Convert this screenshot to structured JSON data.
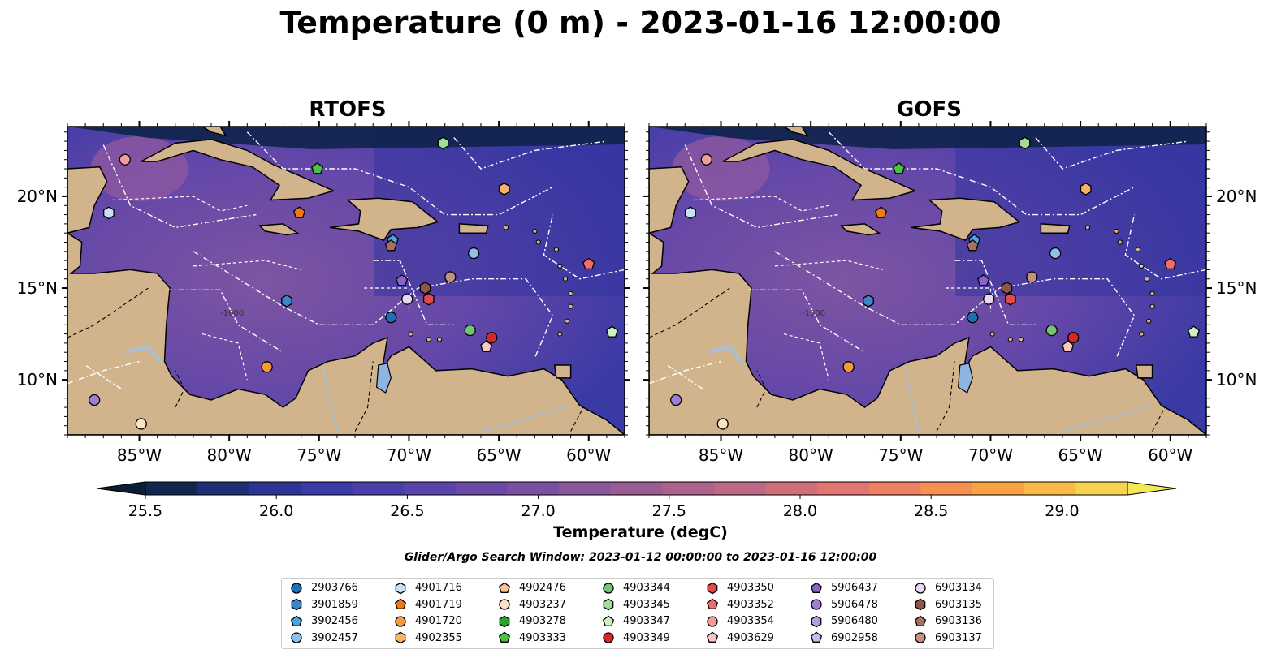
{
  "title": "Temperature (0 m) - 2023-01-16 12:00:00",
  "panels": [
    {
      "title": "RTOFS"
    },
    {
      "title": "GOFS"
    }
  ],
  "lon_ticks": [
    "85°W",
    "80°W",
    "75°W",
    "70°W",
    "65°W",
    "60°W"
  ],
  "lat_ticks": [
    "20°N",
    "15°N",
    "10°N"
  ],
  "isobath_label": "-1000",
  "colorbar": {
    "label": "Temperature (degC)",
    "ticks": [
      "25.5",
      "26.0",
      "26.5",
      "27.0",
      "27.5",
      "28.0",
      "28.5",
      "29.0"
    ],
    "range": [
      25.5,
      29.25
    ],
    "step": 0.25,
    "colors": [
      "#0b1e33",
      "#122650",
      "#1d2e74",
      "#2d3493",
      "#3b3aa6",
      "#4a3fab",
      "#5a44ab",
      "#6a4aa6",
      "#7a51a0",
      "#8a579a",
      "#9a5d93",
      "#ab628b",
      "#bd6884",
      "#cf6f7b",
      "#df7670",
      "#ec8061",
      "#f69050",
      "#faa344",
      "#fbb946",
      "#f7d24f",
      "#f1ea56"
    ]
  },
  "search_window": "Glider/Argo Search Window: 2023-01-12 00:00:00 to 2023-01-16 12:00:00",
  "legend": [
    {
      "id": "2903766",
      "marker": "circle",
      "color": "#1f6fb4"
    },
    {
      "id": "3901859",
      "marker": "hexagon",
      "color": "#3a86c8"
    },
    {
      "id": "3902456",
      "marker": "pentagon",
      "color": "#4da3dd"
    },
    {
      "id": "3902457",
      "marker": "circle",
      "color": "#8ec1ea"
    },
    {
      "id": "4901716",
      "marker": "hexagon",
      "color": "#c7e2f6"
    },
    {
      "id": "4901719",
      "marker": "pentagon",
      "color": "#f07a12"
    },
    {
      "id": "4901720",
      "marker": "circle",
      "color": "#f59a3a"
    },
    {
      "id": "4902355",
      "marker": "hexagon",
      "color": "#f7b267"
    },
    {
      "id": "4902476",
      "marker": "pentagon",
      "color": "#f9c891"
    },
    {
      "id": "4903237",
      "marker": "circle",
      "color": "#fde3c6"
    },
    {
      "id": "4903278",
      "marker": "hexagon",
      "color": "#2ca02c"
    },
    {
      "id": "4903333",
      "marker": "pentagon",
      "color": "#4cc245"
    },
    {
      "id": "4903344",
      "marker": "circle",
      "color": "#74c476"
    },
    {
      "id": "4903345",
      "marker": "hexagon",
      "color": "#a1dd95"
    },
    {
      "id": "4903347",
      "marker": "pentagon",
      "color": "#cdf1c3"
    },
    {
      "id": "4903349",
      "marker": "circle",
      "color": "#d62728"
    },
    {
      "id": "4903350",
      "marker": "hexagon",
      "color": "#e04a4a"
    },
    {
      "id": "4903352",
      "marker": "pentagon",
      "color": "#ee6e6e"
    },
    {
      "id": "4903354",
      "marker": "circle",
      "color": "#f39a9a"
    },
    {
      "id": "4903629",
      "marker": "pentagon",
      "color": "#f9c5c5"
    },
    {
      "id": "5906437",
      "marker": "pentagon",
      "color": "#8a63c9"
    },
    {
      "id": "5906478",
      "marker": "circle",
      "color": "#a07ed6"
    },
    {
      "id": "5906480",
      "marker": "hexagon",
      "color": "#b79be0"
    },
    {
      "id": "6902958",
      "marker": "pentagon",
      "color": "#cdb8ec"
    },
    {
      "id": "6903134",
      "marker": "circle",
      "color": "#e8d6f6"
    },
    {
      "id": "6903135",
      "marker": "hexagon",
      "color": "#8c564b"
    },
    {
      "id": "6903136",
      "marker": "pentagon",
      "color": "#a8705f"
    },
    {
      "id": "6903137",
      "marker": "circle",
      "color": "#c49081"
    }
  ],
  "floats": [
    {
      "id": "4903354",
      "lon": -85.8,
      "lat": 22.0
    },
    {
      "id": "4901716",
      "lon": -86.7,
      "lat": 19.1
    },
    {
      "id": "4903333",
      "lon": -75.1,
      "lat": 21.5
    },
    {
      "id": "4903345",
      "lon": -68.1,
      "lat": 22.9
    },
    {
      "id": "4901719",
      "lon": -76.1,
      "lat": 19.1
    },
    {
      "id": "4902355",
      "lon": -64.7,
      "lat": 20.4
    },
    {
      "id": "3902456",
      "lon": -70.9,
      "lat": 17.6
    },
    {
      "id": "6903136",
      "lon": -71.0,
      "lat": 17.3
    },
    {
      "id": "3902457",
      "lon": -66.4,
      "lat": 16.9
    },
    {
      "id": "4903352",
      "lon": -60.0,
      "lat": 16.3
    },
    {
      "id": "3901859",
      "lon": -76.8,
      "lat": 14.3
    },
    {
      "id": "5906437",
      "lon": -70.4,
      "lat": 15.4
    },
    {
      "id": "6903135",
      "lon": -69.1,
      "lat": 15.0
    },
    {
      "id": "6903137",
      "lon": -67.7,
      "lat": 15.6
    },
    {
      "id": "6903134",
      "lon": -70.1,
      "lat": 14.4
    },
    {
      "id": "4903350",
      "lon": -68.9,
      "lat": 14.4
    },
    {
      "id": "2903766",
      "lon": -71.0,
      "lat": 13.4
    },
    {
      "id": "4903344",
      "lon": -66.6,
      "lat": 12.7
    },
    {
      "id": "4903349",
      "lon": -65.4,
      "lat": 12.3
    },
    {
      "id": "4903629",
      "lon": -65.7,
      "lat": 11.8
    },
    {
      "id": "4903347",
      "lon": -58.7,
      "lat": 12.6
    },
    {
      "id": "4901720",
      "lon": -77.9,
      "lat": 10.7
    },
    {
      "id": "5906478",
      "lon": -87.5,
      "lat": 8.9
    },
    {
      "id": "4903237",
      "lon": -84.9,
      "lat": 7.6
    }
  ]
}
